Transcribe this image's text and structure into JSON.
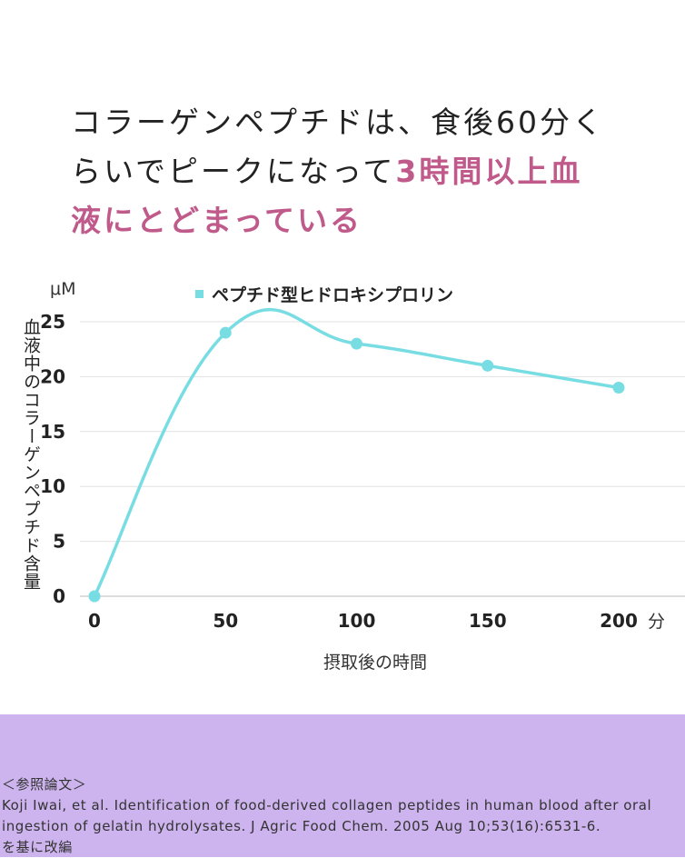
{
  "headline": {
    "line1": "コラーゲンペプチドは、食後60分く",
    "line2_plain": "らいでピークになって",
    "line2_accent": "3時間以上血",
    "line3_accent": "液にとどまっている"
  },
  "chart_data": {
    "type": "line",
    "title": "",
    "x": [
      0,
      50,
      100,
      150,
      200
    ],
    "series": [
      {
        "name": "ペプチド型ヒドロキシプロリン",
        "values": [
          0,
          24,
          23,
          21,
          19
        ],
        "color": "#78dde3"
      }
    ],
    "xlabel": "摂取後の時間",
    "x_unit": "分",
    "ylabel": "血液中のコラーゲンペプチド含量",
    "y_unit": "μM",
    "xlim": [
      0,
      200
    ],
    "ylim": [
      0,
      25
    ],
    "yticks": [
      0,
      5,
      10,
      15,
      20,
      25
    ],
    "xticks": [
      0,
      50,
      100,
      150,
      200
    ],
    "grid": true,
    "legend": "top-center",
    "smooth": true
  },
  "reference": {
    "heading": "＜参照論文＞",
    "line1": "Koji Iwai, et al. Identification of food-derived collagen peptides in human blood after oral",
    "line2": "ingestion of gelatin hydrolysates. J Agric Food Chem. 2005 Aug 10;53(16):6531-6.",
    "line3": "を基に改編"
  },
  "colors": {
    "accent": "#c05a8a",
    "series": "#78dde3",
    "reference_bg": "#cdb4ee"
  }
}
